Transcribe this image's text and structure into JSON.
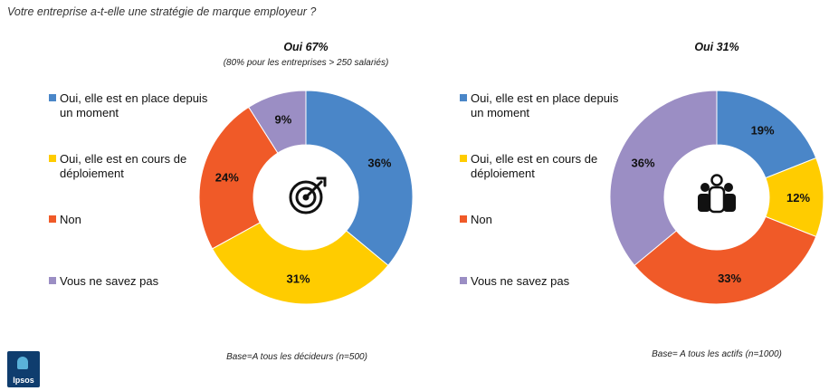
{
  "question": "Votre entreprise a-t-elle une stratégie de marque employeur ?",
  "legend": [
    {
      "label": "Oui, elle est en place depuis un moment",
      "color": "#4A86C8"
    },
    {
      "label": "Oui, elle est en cours de déploiement",
      "color": "#FFCC00"
    },
    {
      "label": "Non",
      "color": "#F05A28"
    },
    {
      "label": "Vous ne savez pas",
      "color": "#9B8EC4"
    }
  ],
  "logo": "Ipsos",
  "chart_data": [
    {
      "type": "pie",
      "title": "Oui 67%",
      "subtitle": "(80% pour les entreprises > 250 salariés)",
      "base": "Base=A tous les décideurs  (n=500)",
      "center_icon": "target-icon",
      "categories": [
        "Oui, elle est en place depuis un moment",
        "Oui, elle est en cours de déploiement",
        "Non",
        "Vous ne savez pas"
      ],
      "values": [
        36,
        31,
        24,
        9
      ],
      "labels": [
        "36%",
        "31%",
        "24%",
        "9%"
      ],
      "colors": [
        "#4A86C8",
        "#FFCC00",
        "#F05A28",
        "#9B8EC4"
      ]
    },
    {
      "type": "pie",
      "title": "Oui 31%",
      "subtitle": "",
      "base": "Base= A tous les actifs  (n=1000)",
      "center_icon": "people-icon",
      "categories": [
        "Oui, elle est en place depuis un moment",
        "Oui, elle est en cours de déploiement",
        "Non",
        "Vous ne savez pas"
      ],
      "values": [
        19,
        12,
        33,
        36
      ],
      "labels": [
        "19%",
        "12%",
        "33%",
        "36%"
      ],
      "colors": [
        "#4A86C8",
        "#FFCC00",
        "#F05A28",
        "#9B8EC4"
      ]
    }
  ]
}
